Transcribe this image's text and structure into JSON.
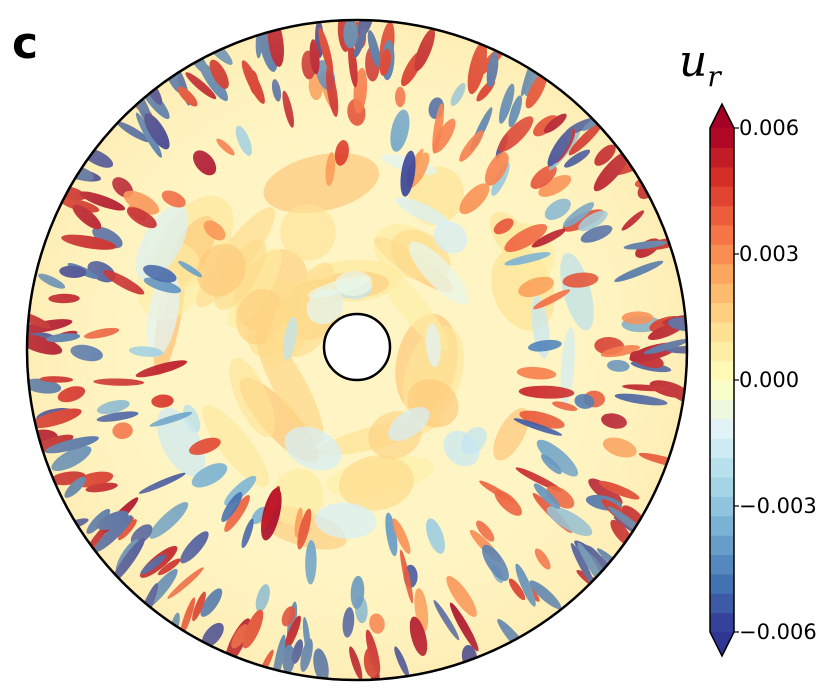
{
  "panel_label": "c",
  "chart_data": {
    "type": "heatmap",
    "geometry": "annulus",
    "colorbar": {
      "label_main": "u",
      "label_sub": "r",
      "min": -0.006,
      "max": 0.006,
      "ticks": [
        {
          "value": 0.006,
          "label": "0.006"
        },
        {
          "value": 0.003,
          "label": "0.003"
        },
        {
          "value": 0.0,
          "label": "0.000"
        },
        {
          "value": -0.003,
          "label": "−0.003"
        },
        {
          "value": -0.006,
          "label": "−0.006"
        }
      ],
      "extend": "both",
      "colormap": "RdYlBu_r",
      "colors": [
        "#313695",
        "#4575b4",
        "#74add1",
        "#abd9e9",
        "#e0f3f8",
        "#ffffbf",
        "#fee090",
        "#fdae61",
        "#f46d43",
        "#d73027",
        "#a50026"
      ]
    }
  }
}
